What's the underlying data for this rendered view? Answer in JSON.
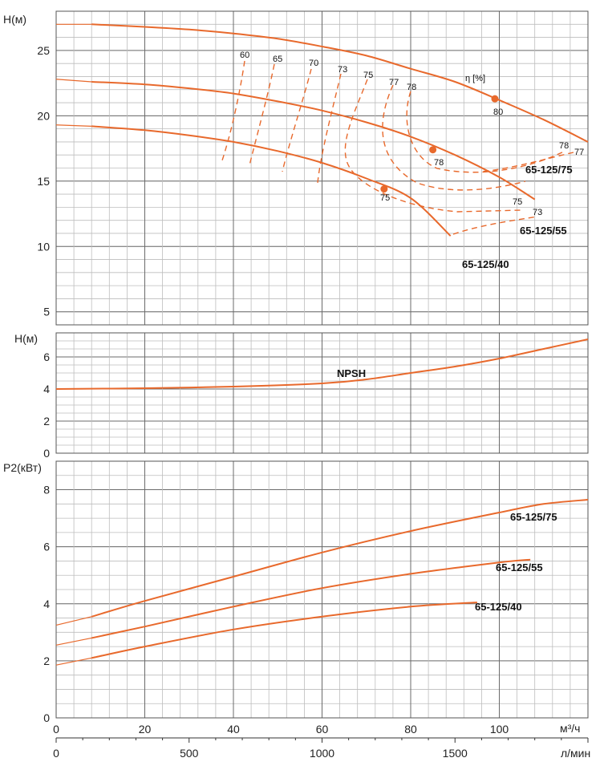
{
  "chart_data": [
    {
      "type": "line",
      "panel": "head",
      "ylabel": "H(м)",
      "eff_label": "η [%]",
      "ylim": [
        4,
        28
      ],
      "yticks": [
        5,
        10,
        15,
        20,
        25
      ],
      "xlim": [
        0,
        120
      ],
      "series": [
        {
          "name": "65-125/75",
          "x": [
            8,
            20,
            30,
            40,
            50,
            60,
            70,
            80,
            90,
            100,
            110,
            120
          ],
          "values": [
            27.0,
            26.8,
            26.6,
            26.3,
            25.9,
            25.3,
            24.6,
            23.6,
            22.6,
            21.2,
            19.7,
            18.0
          ]
        },
        {
          "name": "65-125/55",
          "x": [
            8,
            20,
            30,
            40,
            50,
            60,
            70,
            80,
            90,
            100,
            108
          ],
          "values": [
            22.6,
            22.4,
            22.1,
            21.7,
            21.1,
            20.4,
            19.5,
            18.4,
            17.0,
            15.3,
            13.6
          ]
        },
        {
          "name": "65-125/40",
          "x": [
            8,
            20,
            30,
            40,
            50,
            60,
            70,
            80,
            89
          ],
          "values": [
            19.2,
            18.9,
            18.5,
            18.0,
            17.3,
            16.4,
            15.2,
            13.7,
            10.8
          ]
        }
      ],
      "dashed_stub": {
        "x0": 0,
        "y": [
          27.0,
          22.8,
          19.3
        ]
      },
      "efficiency_labels": [
        "60",
        "65",
        "70",
        "73",
        "75",
        "77",
        "78",
        "80",
        "78",
        "75",
        "78",
        "77",
        "75",
        "73"
      ],
      "bep_points": [
        {
          "x": 99.0,
          "y": 21.3,
          "label": "80"
        },
        {
          "x": 85.0,
          "y": 17.4,
          "label": "78"
        },
        {
          "x": 74.0,
          "y": 14.4,
          "label": "75"
        }
      ]
    },
    {
      "type": "line",
      "panel": "npsh",
      "ylabel": "H(м)",
      "ylim": [
        0,
        7.5
      ],
      "yticks": [
        0,
        2,
        4,
        6
      ],
      "xlim": [
        0,
        120
      ],
      "series": [
        {
          "name": "NPSH",
          "x": [
            0,
            20,
            40,
            60,
            70,
            80,
            90,
            100,
            110,
            120
          ],
          "values": [
            4.0,
            4.05,
            4.15,
            4.35,
            4.6,
            5.0,
            5.4,
            5.9,
            6.5,
            7.1
          ]
        }
      ]
    },
    {
      "type": "line",
      "panel": "power",
      "ylabel": "P2(кВт)",
      "ylim": [
        0,
        9
      ],
      "yticks": [
        0,
        2,
        4,
        6,
        8
      ],
      "xlim": [
        0,
        120
      ],
      "x_axis_label": "м³/ч",
      "x_axis_label2": "л/мин",
      "xticks": [
        0,
        20,
        40,
        60,
        80,
        100
      ],
      "xticks2": [
        0,
        500,
        1000,
        1500
      ],
      "series": [
        {
          "name": "65-125/75",
          "x": [
            8,
            20,
            40,
            60,
            80,
            100,
            110,
            120
          ],
          "values": [
            3.55,
            4.1,
            4.95,
            5.8,
            6.55,
            7.2,
            7.5,
            7.65
          ]
        },
        {
          "name": "65-125/55",
          "x": [
            8,
            20,
            40,
            60,
            80,
            100,
            107
          ],
          "values": [
            2.8,
            3.2,
            3.9,
            4.55,
            5.05,
            5.45,
            5.55
          ]
        },
        {
          "name": "65-125/40",
          "x": [
            8,
            20,
            40,
            60,
            80,
            95
          ],
          "values": [
            2.1,
            2.5,
            3.1,
            3.55,
            3.9,
            4.05
          ]
        }
      ],
      "dashed_stub_y": [
        3.25,
        2.55,
        1.85
      ]
    }
  ],
  "colors": {
    "curve": "#e8692c",
    "grid": "#bdbdbd",
    "grid_major": "#6b6b6b"
  }
}
